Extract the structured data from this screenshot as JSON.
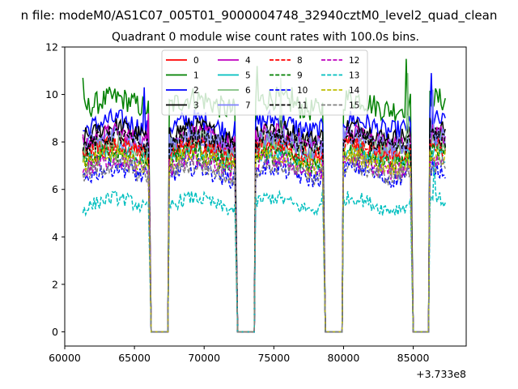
{
  "chart_data": {
    "type": "line",
    "suptitle": "n file: modeM0/AS1C07_005T01_9000004748_32940cztM0_level2_quad_clean",
    "title": "Quadrant 0 module wise count rates with 100.0s bins.",
    "xlabel": "",
    "ylabel": "",
    "x_offset_label": "+3.733e8",
    "xlim": [
      60000,
      88800
    ],
    "ylim": [
      -0.6,
      12
    ],
    "xticks": [
      "60000",
      "65000",
      "70000",
      "75000",
      "80000",
      "85000"
    ],
    "xtick_values": [
      60000,
      65000,
      70000,
      75000,
      80000,
      85000
    ],
    "yticks": [
      "0",
      "2",
      "4",
      "6",
      "8",
      "10",
      "12"
    ],
    "ytick_values": [
      0,
      2,
      4,
      6,
      8,
      10,
      12
    ],
    "legend_position": "upper center",
    "x_start": 61300,
    "x_step": 100,
    "x_end": 87300,
    "segments": [
      {
        "on": [
          61300,
          66000
        ],
        "zero": [
          66200,
          67400
        ],
        "ramp_end": 67500
      },
      {
        "on": [
          67500,
          72200
        ],
        "zero": [
          72400,
          73600
        ],
        "ramp_end": 73700
      },
      {
        "on": [
          73700,
          78500
        ],
        "zero": [
          78700,
          79900
        ],
        "ramp_end": 80000
      },
      {
        "on": [
          80000,
          84800
        ],
        "zero": [
          85000,
          86100
        ],
        "ramp_end": 86200
      },
      {
        "on": [
          86200,
          87300
        ]
      }
    ],
    "series": [
      {
        "name": "0",
        "color": "#ff0000",
        "dash": "solid",
        "mean": 7.7,
        "noise": 0.45,
        "spikes": []
      },
      {
        "name": "1",
        "color": "#008000",
        "dash": "solid",
        "mean": 9.6,
        "noise": 0.5,
        "spikes": [
          [
            61300,
            10.7
          ],
          [
            73800,
            11.2
          ],
          [
            76300,
            10.3
          ],
          [
            84500,
            11.5
          ]
        ]
      },
      {
        "name": "2",
        "color": "#0000ff",
        "dash": "solid",
        "mean": 8.7,
        "noise": 0.45,
        "spikes": [
          [
            65700,
            10.3
          ],
          [
            86300,
            10.9
          ]
        ]
      },
      {
        "name": "3",
        "color": "#000000",
        "dash": "solid",
        "mean": 8.4,
        "noise": 0.4,
        "spikes": []
      },
      {
        "name": "4",
        "color": "#bf00bf",
        "dash": "solid",
        "mean": 8.1,
        "noise": 0.45,
        "spikes": [
          [
            66000,
            9.2
          ]
        ]
      },
      {
        "name": "5",
        "color": "#00bfbf",
        "dash": "solid",
        "mean": 7.4,
        "noise": 0.4,
        "spikes": []
      },
      {
        "name": "6",
        "color": "#7fbf7f",
        "dash": "solid",
        "mean": 7.8,
        "noise": 0.45,
        "spikes": [
          [
            75500,
            10.7
          ],
          [
            84600,
            10.9
          ]
        ]
      },
      {
        "name": "7",
        "color": "#7f7fff",
        "dash": "solid",
        "mean": 8.0,
        "noise": 0.45,
        "spikes": [
          [
            86400,
            10.2
          ]
        ]
      },
      {
        "name": "8",
        "color": "#ff0000",
        "dash": "dashed",
        "mean": 7.6,
        "noise": 0.4,
        "spikes": []
      },
      {
        "name": "9",
        "color": "#008000",
        "dash": "dashed",
        "mean": 7.3,
        "noise": 0.4,
        "spikes": []
      },
      {
        "name": "10",
        "color": "#0000ff",
        "dash": "dashed",
        "mean": 6.7,
        "noise": 0.4,
        "spikes": []
      },
      {
        "name": "11",
        "color": "#000000",
        "dash": "dashed",
        "mean": 8.0,
        "noise": 0.4,
        "spikes": []
      },
      {
        "name": "12",
        "color": "#bf00bf",
        "dash": "dashed",
        "mean": 7.0,
        "noise": 0.4,
        "spikes": []
      },
      {
        "name": "13",
        "color": "#00bfbf",
        "dash": "dashed",
        "mean": 5.4,
        "noise": 0.3,
        "spikes": [
          [
            78500,
            6.0
          ],
          [
            86500,
            7.2
          ]
        ]
      },
      {
        "name": "14",
        "color": "#bfbf00",
        "dash": "dashed",
        "mean": 7.2,
        "noise": 0.4,
        "spikes": []
      },
      {
        "name": "15",
        "color": "#808080",
        "dash": "dashed",
        "mean": 6.8,
        "noise": 0.4,
        "spikes": []
      }
    ]
  }
}
